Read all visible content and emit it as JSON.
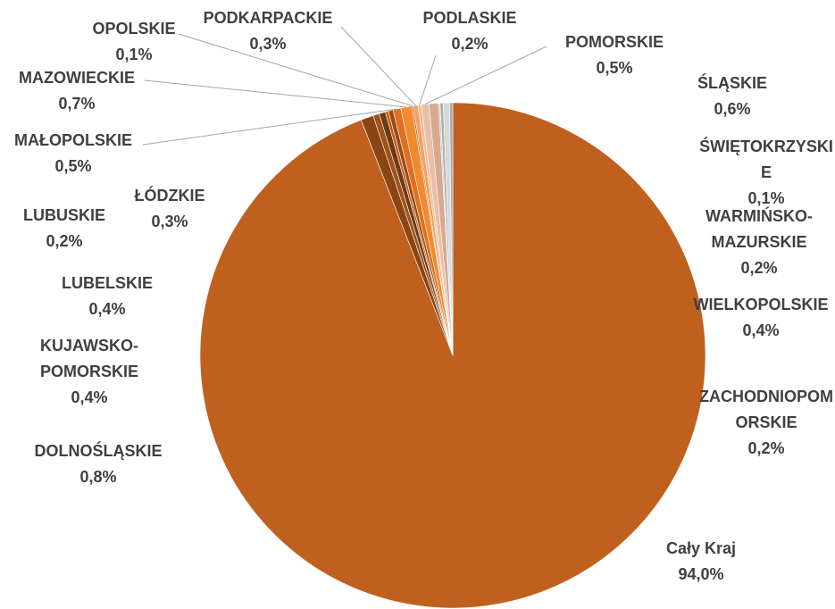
{
  "chart_data": {
    "type": "pie",
    "categories": [
      "Cały Kraj",
      "DOLNOŚLĄSKIE",
      "KUJAWSKO-POMORSKIE",
      "LUBELSKIE",
      "LUBUSKIE",
      "ŁÓDZKIE",
      "MAŁOPOLSKIE",
      "MAZOWIECKIE",
      "OPOLSKIE",
      "PODKARPACKIE",
      "PODLASKIE",
      "POMORSKIE",
      "ŚLĄSKIE",
      "ŚWIĘTOKRZYSKIE",
      "WARMIŃSKO-MAZURSKIE",
      "WIELKOPOLSKIE",
      "ZACHODNIOPOMORSKIE"
    ],
    "values": [
      94.0,
      0.8,
      0.4,
      0.4,
      0.2,
      0.3,
      0.5,
      0.7,
      0.1,
      0.3,
      0.2,
      0.5,
      0.6,
      0.1,
      0.2,
      0.4,
      0.2
    ],
    "value_labels": [
      "94,0%",
      "0,8%",
      "0,4%",
      "0,4%",
      "0,2%",
      "0,3%",
      "0,5%",
      "0,7%",
      "0,1%",
      "0,3%",
      "0,2%",
      "0,5%",
      "0,6%",
      "0,1%",
      "0,2%",
      "0,4%",
      "0,2%"
    ],
    "colors": [
      "#c0601e",
      "#8b4513",
      "#a0521c",
      "#6e3a12",
      "#c85a1a",
      "#9c4a14",
      "#e07020",
      "#f28a2e",
      "#c06020",
      "#f4a060",
      "#f7b890",
      "#e8c0a8",
      "#d9a890",
      "#c8c8c8",
      "#b0b0b0",
      "#d8d8d8",
      "#a8a8a8"
    ]
  }
}
